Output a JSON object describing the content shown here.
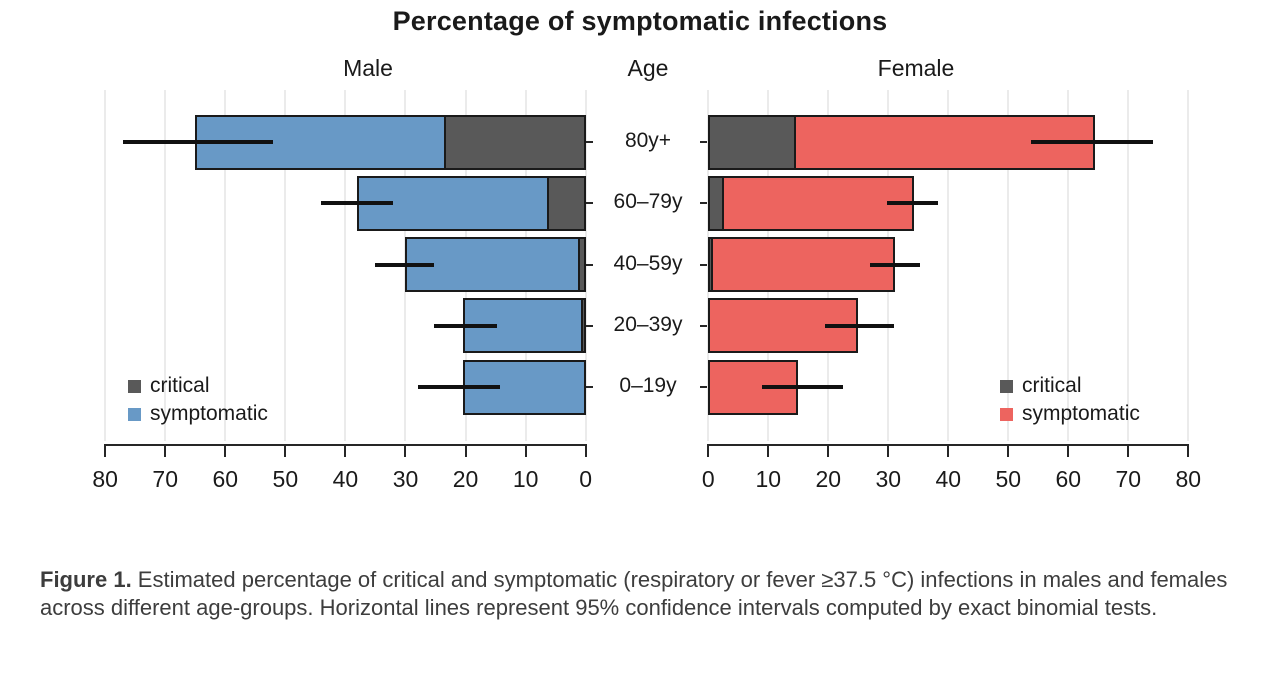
{
  "figure": {
    "caption_label": "Figure 1.",
    "caption_text": " Estimated percentage of critical and symptomatic (respiratory or fever ≥37.5 °C) infections in males and females across different age-groups. Horizontal lines represent 95% confidence intervals computed by exact binomial tests."
  },
  "chart_data": {
    "type": "bar",
    "variant": "bidirectional-stacked-horizontal",
    "title": "Percentage of symptomatic infections",
    "center_axis_title": "Age",
    "categories": [
      "80y+",
      "60–79y",
      "40–59y",
      "20–39y",
      "0–19y"
    ],
    "value_unit": "percent",
    "grid": true,
    "axis": {
      "min": 0,
      "max": 80,
      "tick_step": 10,
      "male_tick_labels": [
        "80",
        "70",
        "60",
        "50",
        "40",
        "30",
        "20",
        "10",
        "0"
      ],
      "female_tick_labels": [
        "0",
        "10",
        "20",
        "30",
        "40",
        "50",
        "60",
        "70",
        "80"
      ]
    },
    "panels": [
      {
        "id": "male",
        "header": "Male",
        "direction": "left",
        "colors": {
          "symptomatic": "#6899C6",
          "critical": "#595959"
        },
        "legend": {
          "position": "bottom-left",
          "entries": [
            {
              "label": "critical",
              "color": "#595959"
            },
            {
              "label": "symptomatic",
              "color": "#6899C6"
            }
          ]
        },
        "rows": [
          {
            "age": "80y+",
            "symptomatic_total_pct": 65.0,
            "critical_pct": 23.6,
            "ci95": [
              52.0,
              77.0
            ]
          },
          {
            "age": "60–79y",
            "symptomatic_total_pct": 38.0,
            "critical_pct": 6.4,
            "ci95": [
              32.0,
              44.0
            ]
          },
          {
            "age": "40–59y",
            "symptomatic_total_pct": 30.0,
            "critical_pct": 1.2,
            "ci95": [
              25.3,
              35.0
            ]
          },
          {
            "age": "20–39y",
            "symptomatic_total_pct": 20.4,
            "critical_pct": 0.7,
            "ci95": [
              14.7,
              25.3
            ]
          },
          {
            "age": "0–19y",
            "symptomatic_total_pct": 20.5,
            "critical_pct": 0,
            "ci95": [
              14.3,
              27.9
            ]
          }
        ]
      },
      {
        "id": "female",
        "header": "Female",
        "direction": "right",
        "colors": {
          "symptomatic": "#ED645F",
          "critical": "#595959"
        },
        "legend": {
          "position": "bottom-right",
          "entries": [
            {
              "label": "critical",
              "color": "#595959"
            },
            {
              "label": "symptomatic",
              "color": "#ED645F"
            }
          ]
        },
        "rows": [
          {
            "age": "80y+",
            "symptomatic_total_pct": 64.4,
            "critical_pct": 14.6,
            "ci95": [
              53.8,
              74.2
            ]
          },
          {
            "age": "60–79y",
            "symptomatic_total_pct": 34.3,
            "critical_pct": 2.7,
            "ci95": [
              29.7,
              38.3
            ]
          },
          {
            "age": "40–59y",
            "symptomatic_total_pct": 31.1,
            "critical_pct": 0.8,
            "ci95": [
              26.9,
              35.3
            ]
          },
          {
            "age": "20–39y",
            "symptomatic_total_pct": 25.0,
            "critical_pct": 0,
            "ci95": [
              19.4,
              31.0
            ]
          },
          {
            "age": "0–19y",
            "symptomatic_total_pct": 15.0,
            "critical_pct": 0,
            "ci95": [
              8.9,
              22.5
            ]
          }
        ]
      }
    ]
  }
}
